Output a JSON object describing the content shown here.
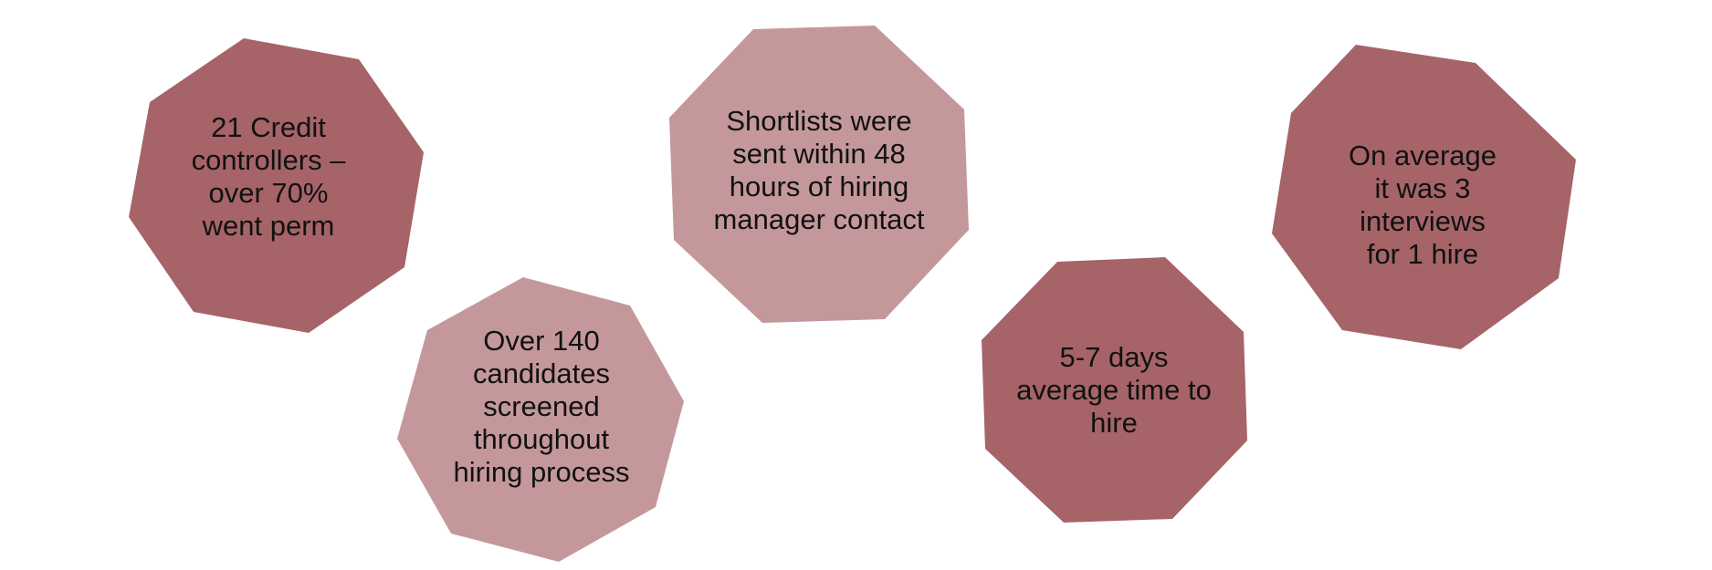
{
  "colors": {
    "dark": "#a66468",
    "light": "#c4989b",
    "text": "#111111"
  },
  "shapes": [
    {
      "text": "21 Credit\ncontrollers –\nover 70%\nwent perm",
      "tone": "dark"
    },
    {
      "text": "Over 140\ncandidates\nscreened\nthroughout\nhiring process",
      "tone": "light"
    },
    {
      "text": "Shortlists were\nsent within 48\nhours of hiring\nmanager contact",
      "tone": "light"
    },
    {
      "text": "5-7 days\naverage time to\nhire",
      "tone": "dark"
    },
    {
      "text": "On average\nit was 3\ninterviews\nfor 1 hire",
      "tone": "dark"
    }
  ]
}
